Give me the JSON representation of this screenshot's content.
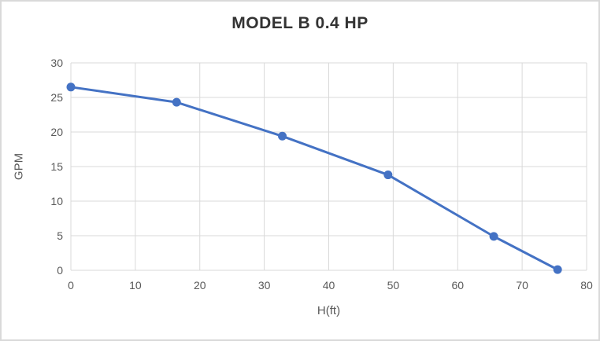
{
  "chart_data": {
    "type": "line",
    "title": "MODEL B 0.4 HP",
    "xlabel": "H(ft)",
    "ylabel": "GPM",
    "x": [
      0,
      16.4,
      32.8,
      49.2,
      65.6,
      75.5
    ],
    "y": [
      26.5,
      24.3,
      19.4,
      13.8,
      4.9,
      0.1
    ],
    "xlim": [
      0,
      80
    ],
    "ylim": [
      0,
      30
    ],
    "xticks": [
      0,
      10,
      20,
      30,
      40,
      50,
      60,
      70,
      80
    ],
    "yticks": [
      0,
      5,
      10,
      15,
      20,
      25,
      30
    ],
    "grid": true,
    "legend": "none",
    "line_color": "#4472C4",
    "marker": "circle",
    "marker_color": "#4472C4",
    "gridline_color": "#d9d9d9",
    "axis_text_color": "#595959",
    "title_color": "#333333",
    "border_color": "#d9d9d9",
    "background_color": "#ffffff"
  }
}
